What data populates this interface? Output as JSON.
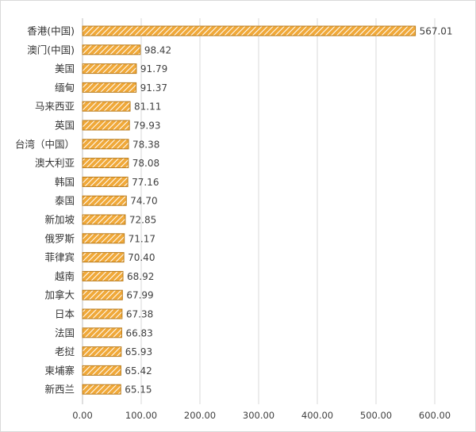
{
  "colors": {
    "bar_fill": "#f0a93a",
    "bar_hatch": "#ffffff",
    "bar_stroke": "#b87a1a",
    "grid": "#d9d9d9"
  },
  "chart_data": {
    "type": "bar",
    "orientation": "horizontal",
    "title": "",
    "xlabel": "",
    "ylabel": "",
    "xlim": [
      0,
      600
    ],
    "xticks": [
      "0.00",
      "100.00",
      "200.00",
      "300.00",
      "400.00",
      "500.00",
      "600.00"
    ],
    "grid": true,
    "legend": "none",
    "categories": [
      "香港(中国)",
      "澳门(中国)",
      "美国",
      "缅甸",
      "马来西亚",
      "英国",
      "台湾（中国）",
      "澳大利亚",
      "韩国",
      "泰国",
      "新加坡",
      "俄罗斯",
      "菲律宾",
      "越南",
      "加拿大",
      "日本",
      "法国",
      "老挝",
      "柬埔寨",
      "新西兰"
    ],
    "values": [
      567.01,
      98.42,
      91.79,
      91.37,
      81.11,
      79.93,
      78.38,
      78.08,
      77.16,
      74.7,
      72.85,
      71.17,
      70.4,
      68.92,
      67.99,
      67.38,
      66.83,
      65.93,
      65.42,
      65.15
    ],
    "value_labels": [
      "567.01",
      "98.42",
      "91.79",
      "91.37",
      "81.11",
      "79.93",
      "78.38",
      "78.08",
      "77.16",
      "74.70",
      "72.85",
      "71.17",
      "70.40",
      "68.92",
      "67.99",
      "67.38",
      "66.83",
      "65.93",
      "65.42",
      "65.15"
    ]
  }
}
